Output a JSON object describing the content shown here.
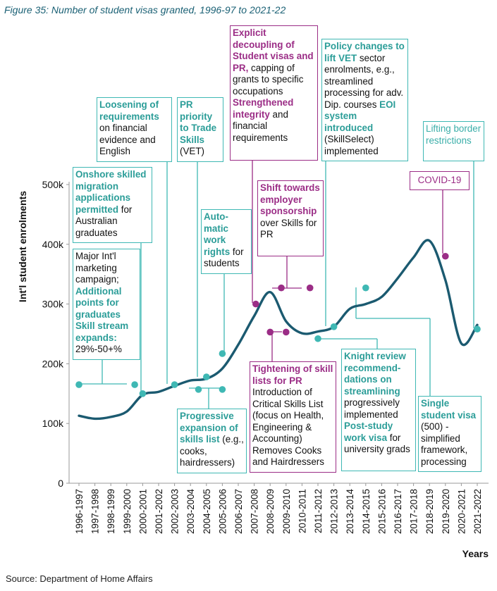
{
  "figure_title": "Figure 35:  Number of student visas granted, 1996-97 to 2021-22",
  "source": "Source:  Department of Home Affairs",
  "colors": {
    "line": "#1b5a70",
    "teal": "#3fb8b4",
    "magenta": "#9b2d86"
  },
  "chart_data": {
    "type": "line",
    "title": "",
    "xlabel": "Years",
    "ylabel": "Int'l student enrolments",
    "ylim": [
      0,
      500000
    ],
    "y_ticks": [
      "0",
      "100k",
      "200k",
      "300k",
      "400k",
      "500k"
    ],
    "categories": [
      "1996-1997",
      "1997-1998",
      "1998-1999",
      "1999-2000",
      "2000-2001",
      "2001-2002",
      "2002-2003",
      "2003-2004",
      "2004-2005",
      "2005-2006",
      "2006-2007",
      "2007-2008",
      "2008-2009",
      "2009-2010",
      "2010-2011",
      "2011-2012",
      "2012-2013",
      "2013-2014",
      "2014-2015",
      "2015-2016",
      "2016-2017",
      "2017-2018",
      "2018-2019",
      "2019-2020",
      "2020-2021",
      "2021-2022"
    ],
    "values": [
      113000,
      108000,
      111000,
      120000,
      148000,
      153000,
      163000,
      172000,
      175000,
      192000,
      232000,
      280000,
      320000,
      271000,
      251000,
      254000,
      262000,
      292000,
      300000,
      312000,
      343000,
      378000,
      406000,
      340000,
      234000,
      265000
    ],
    "event_markers": [
      {
        "x": 0.0,
        "value": 165000,
        "kind": "teal"
      },
      {
        "x": 3.5,
        "value": 165000,
        "kind": "teal"
      },
      {
        "x": 4.0,
        "value": 150000,
        "kind": "teal"
      },
      {
        "x": 6.0,
        "value": 165000,
        "kind": "teal"
      },
      {
        "x": 7.5,
        "value": 157000,
        "kind": "teal"
      },
      {
        "x": 8.0,
        "value": 178000,
        "kind": "teal"
      },
      {
        "x": 9.0,
        "value": 157000,
        "kind": "teal"
      },
      {
        "x": 9.0,
        "value": 217000,
        "kind": "teal"
      },
      {
        "x": 11.1,
        "value": 300000,
        "kind": "magenta"
      },
      {
        "x": 12.0,
        "value": 253000,
        "kind": "magenta"
      },
      {
        "x": 13.0,
        "value": 253000,
        "kind": "magenta"
      },
      {
        "x": 12.7,
        "value": 327000,
        "kind": "magenta"
      },
      {
        "x": 14.5,
        "value": 327000,
        "kind": "magenta"
      },
      {
        "x": 15.0,
        "value": 242000,
        "kind": "teal"
      },
      {
        "x": 16.0,
        "value": 262000,
        "kind": "teal"
      },
      {
        "x": 18.0,
        "value": 327000,
        "kind": "teal"
      },
      {
        "x": 23.0,
        "value": 380000,
        "kind": "magenta"
      },
      {
        "x": 25.0,
        "value": 258000,
        "kind": "teal"
      }
    ]
  },
  "annotations": {
    "onshore": {
      "h1": "Onshore skilled migration applications permitted",
      "t1": " for Australian graduates"
    },
    "marketing": {
      "t1": "Major Int'l marketing campaign;",
      "h1": "Additional points for graduates",
      "h2": "Skill stream expands:",
      "t2": "29%-50+%"
    },
    "loosening": {
      "h1": "Loosening of requirements",
      "t1": " on financial evidence and English"
    },
    "pr_priority": {
      "h1": "PR priority to Trade Skills",
      "t1": " (VET)"
    },
    "automatic": {
      "h1": "Auto-matic work rights",
      "t1": " for students"
    },
    "progressive": {
      "h1": "Progressive expansion of skills list",
      "t1": " (e.g., cooks, hairdressers)"
    },
    "explicit": {
      "h1": "Explicit decoupling of Student visas and PR,",
      "t1": " capping of grants to specific occupations ",
      "h2": "Strengthened integrity",
      "t2": " and financial requirements"
    },
    "shift": {
      "h1": "Shift towards employer sponsorship",
      "t1": " over Skills for PR"
    },
    "tightening": {
      "h1": "Tightening of skill lists for PR",
      "t1": "Introduction of Critical Skills List (focus on Health, Engineering & Accounting) Removes Cooks and Hairdressers"
    },
    "policy": {
      "h1": "Policy changes to lift VET",
      "t1": " sector enrolments, e.g., streamlined processing for adv. Dip. courses ",
      "h2": "EOI system introduced",
      "t2": " (SkillSelect) implemented"
    },
    "knight": {
      "h1": "Knight review recommend-dations on streamlining",
      "t1": " progressively implemented ",
      "h2": "Post-study work visa",
      "t2": " for university grads"
    },
    "single": {
      "h1": "Single student visa",
      "t1": " (500) - simplified framework, processing"
    },
    "lifting": {
      "t1": "Lifting border restrictions"
    },
    "covid": {
      "t1": "COVID-19"
    }
  }
}
